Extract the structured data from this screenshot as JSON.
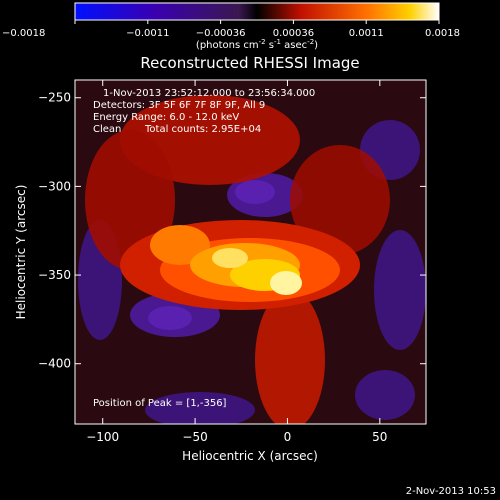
{
  "chart_data": {
    "type": "heatmap",
    "title": "Reconstructed RHESSI Image",
    "xlabel": "Heliocentric X (arcsec)",
    "ylabel": "Heliocentric Y (arcsec)",
    "xlim": [
      -115,
      75
    ],
    "ylim": [
      -434,
      -240
    ],
    "x_ticks": [
      -100,
      -50,
      0,
      50
    ],
    "y_ticks": [
      -250,
      -300,
      -350,
      -400
    ],
    "colorbar": {
      "range": [
        -0.0018,
        0.0018
      ],
      "tick_labels": [
        "-0.0018",
        "-0.0011",
        "-0.00036",
        "0.00036",
        "0.0011",
        "0.0018"
      ],
      "units_text": "(photons cm",
      "units_exp1": "-2",
      "units_mid": " s",
      "units_exp2": "-1",
      "units_tail": " asec",
      "units_exp3": "-2",
      "units_close": ")"
    },
    "annotations": {
      "time_range": "1-Nov-2013 23:52:12.000 to 23:56:34.000",
      "detectors": "Detectors: 3F 5F 6F 7F 8F 9F, All 9",
      "energy_range": "Energy Range: 6.0 - 12.0 keV",
      "clean_label": "Clean",
      "total_counts": "Total counts: 2.95E+04",
      "peak": "Position of Peak = [1,-356]"
    },
    "peak_position": [
      1,
      -356
    ]
  },
  "footer": {
    "timestamp": "2-Nov-2013 10:53"
  }
}
